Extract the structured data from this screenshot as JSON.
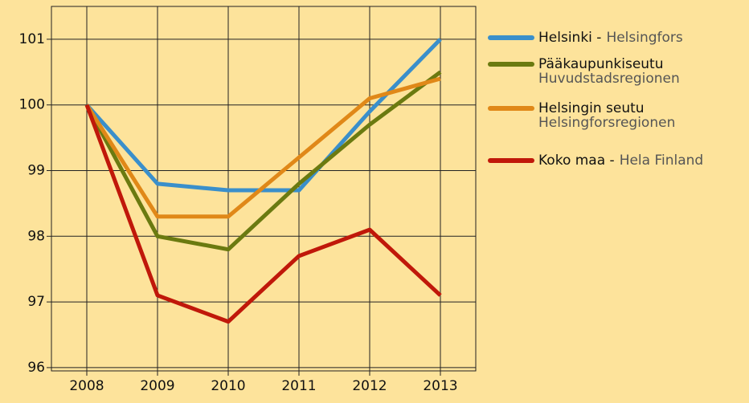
{
  "chart_data": {
    "type": "line",
    "categories": [
      "2008",
      "2009",
      "2010",
      "2011",
      "2012",
      "2013"
    ],
    "series": [
      {
        "name": "Helsinki -",
        "name_sv": "Helsingfors",
        "color": "#3a8fcb",
        "values": [
          100,
          98.8,
          98.7,
          98.7,
          99.9,
          101
        ]
      },
      {
        "name": "Pääkaupunkiseutu",
        "name_sv": "Huvudstadsregionen",
        "color": "#6b7a10",
        "values": [
          100,
          98.0,
          97.8,
          98.8,
          99.7,
          100.5
        ]
      },
      {
        "name": "Helsingin seutu",
        "name_sv": "Helsingforsregionen",
        "color": "#e08818",
        "values": [
          100,
          98.3,
          98.3,
          99.2,
          100.1,
          100.4
        ]
      },
      {
        "name": "Koko maa -",
        "name_sv": "Hela Finland",
        "color": "#c0180a",
        "values": [
          100,
          97.1,
          96.7,
          97.7,
          98.1,
          97.1
        ]
      }
    ],
    "ylim": [
      95.95,
      101.5
    ],
    "yticks": [
      96,
      97,
      98,
      99,
      100,
      101
    ],
    "grid": true
  }
}
